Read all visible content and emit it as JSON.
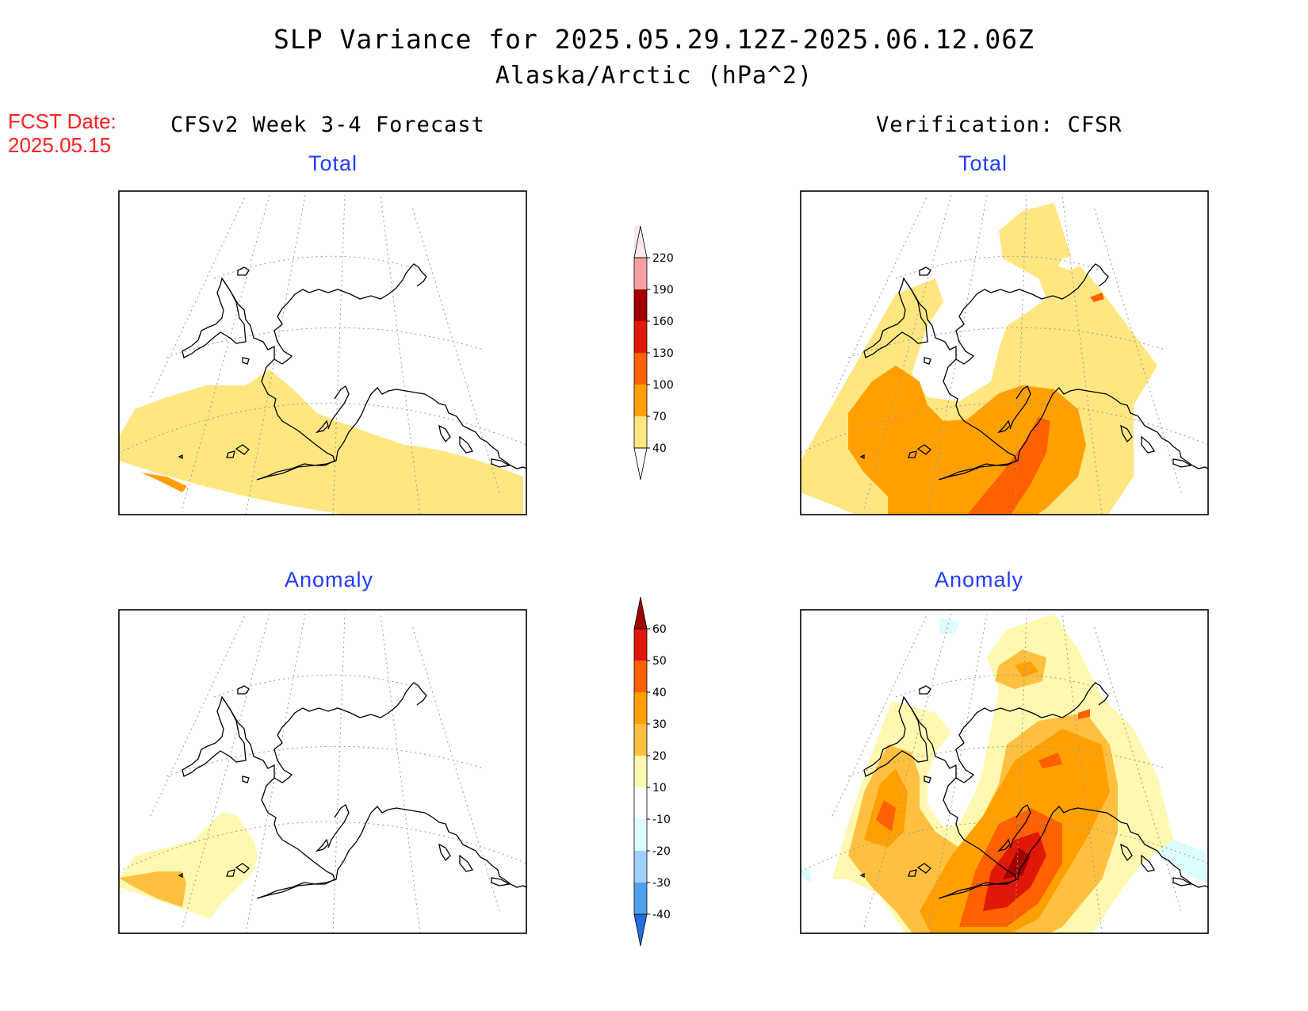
{
  "title": {
    "line1": "SLP Variance for 2025.05.29.12Z-2025.06.12.06Z",
    "line2": "Alaska/Arctic (hPa^2)"
  },
  "fcst_date": {
    "label": "FCST Date:",
    "value": "2025.05.15"
  },
  "columns": {
    "left_header": "CFSv2 Week 3-4 Forecast",
    "right_header": "Verification: CFSR"
  },
  "panels": {
    "top_left": "Total",
    "top_right": "Total",
    "bottom_left": "Anomaly",
    "bottom_right": "Anomaly"
  },
  "colorbars": {
    "total": {
      "labels": [
        "220",
        "190",
        "160",
        "130",
        "100",
        "70",
        "40"
      ],
      "colors": [
        "#fce8e8",
        "#f4a0a0",
        "#a00000",
        "#e01808",
        "#ff6000",
        "#ffa000",
        "#ffe680"
      ]
    },
    "anomaly": {
      "labels": [
        "60",
        "50",
        "40",
        "30",
        "20",
        "10",
        "-10",
        "-20",
        "-30",
        "-40"
      ],
      "colors": [
        "#a00000",
        "#e01808",
        "#ff6000",
        "#ffa000",
        "#ffc040",
        "#fff8b0",
        "#ffffff",
        "#dcfcff",
        "#a0d0ff",
        "#50a0f0",
        "#1e6ee0"
      ]
    }
  }
}
